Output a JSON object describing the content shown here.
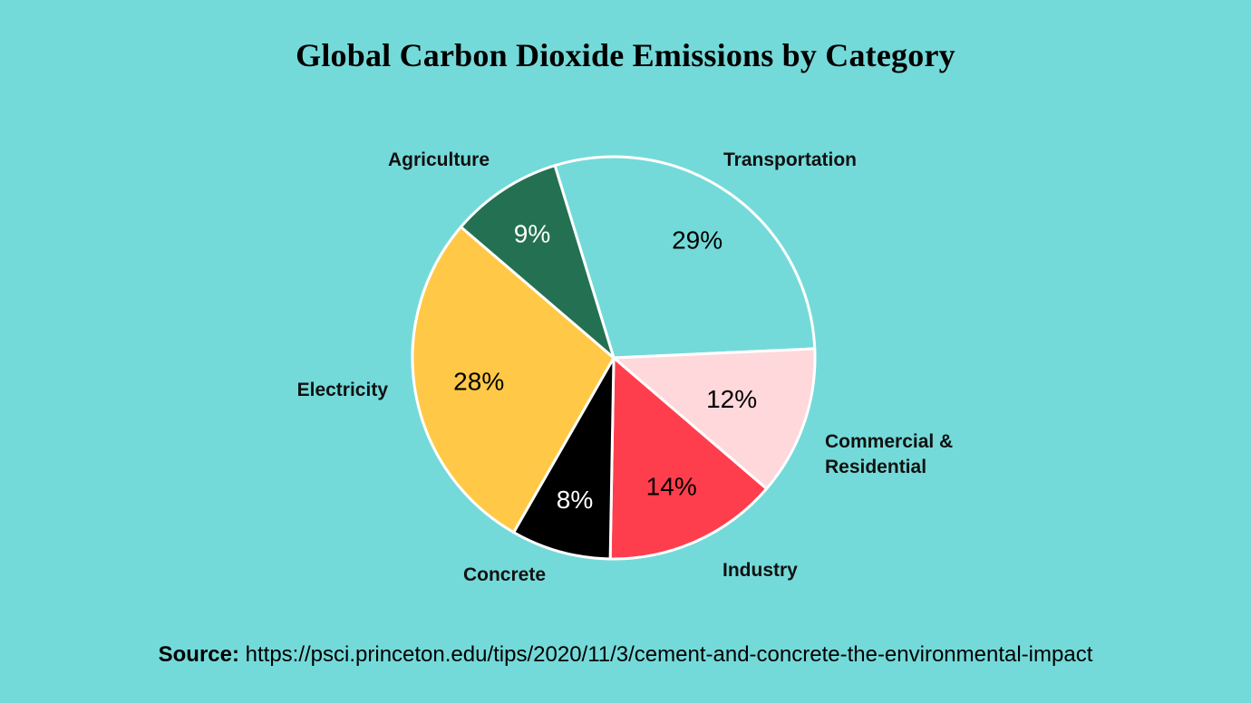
{
  "chart_data": {
    "type": "pie",
    "title": "Global Carbon Dioxide Emissions by Category",
    "slices": [
      {
        "label": "Transportation",
        "value": 29,
        "value_label": "29%",
        "color": "#74DAD9",
        "text_color": "#000000"
      },
      {
        "label": "Commercial & Residential",
        "label_lines": [
          "Commercial &",
          "Residential"
        ],
        "value": 12,
        "value_label": "12%",
        "color": "#FFD8DC",
        "text_color": "#000000"
      },
      {
        "label": "Industry",
        "value": 14,
        "value_label": "14%",
        "color": "#FF3E4D",
        "text_color": "#000000"
      },
      {
        "label": "Concrete",
        "value": 8,
        "value_label": "8%",
        "color": "#000000",
        "text_color": "#FFFFFF"
      },
      {
        "label": "Electricity",
        "value": 28,
        "value_label": "28%",
        "color": "#FFC947",
        "text_color": "#000000"
      },
      {
        "label": "Agriculture",
        "value": 9,
        "value_label": "9%",
        "color": "#237152",
        "text_color": "#FFFFFF"
      }
    ],
    "legend": "none"
  },
  "source": {
    "prefix": "Source:",
    "url": "https://psci.princeton.edu/tips/2020/11/3/cement-and-concrete-the-environmental-impact"
  },
  "colors": {
    "background": "#74DAD9",
    "slice_border": "#FFFFFF"
  }
}
